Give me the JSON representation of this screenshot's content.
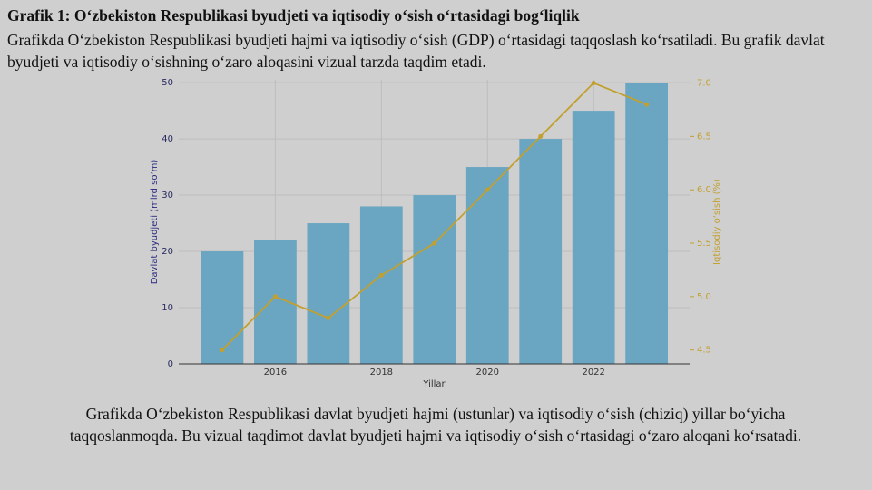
{
  "header": {
    "title": "Grafik 1: O‘zbekiston Respublikasi byudjeti va iqtisodiy o‘sish o‘rtasidagi bog‘liqlik",
    "intro": "Grafikda O‘zbekiston Respublikasi byudjeti hajmi va iqtisodiy o‘sish (GDP) o‘rtasidagi taqqoslash ko‘rsatiladi. Bu grafik davlat byudjeti va iqtisodiy o‘sishning o‘zaro aloqasini vizual tarzda taqdim etadi."
  },
  "chart_data": {
    "type": "combo",
    "x": [
      2015,
      2016,
      2017,
      2018,
      2019,
      2020,
      2021,
      2022,
      2023
    ],
    "xlabel": "Yillar",
    "ylabel": "Davlat byudjeti (mlrd so‘m)",
    "y2label": "Iqtisodiy o‘sish (%)",
    "series": [
      {
        "name": "Davlat byudjeti",
        "type": "bar",
        "color": "#6aa6c2",
        "values": [
          20,
          22,
          25,
          28,
          30,
          35,
          40,
          45,
          50
        ]
      },
      {
        "name": "Iqtisodiy o‘sish",
        "type": "line",
        "axis": "y2",
        "color": "#c2a030",
        "values": [
          4.5,
          5.0,
          4.8,
          5.2,
          5.5,
          6.0,
          6.5,
          7.0,
          6.8
        ]
      }
    ],
    "xlim": [
      2014.18,
      2023.81
    ],
    "xticks": [
      2016,
      2018,
      2020,
      2022
    ],
    "ylim": [
      0,
      50.5
    ],
    "yticks": [
      0,
      10,
      20,
      30,
      40,
      50
    ],
    "y2lim": [
      4.37,
      7.03
    ],
    "y2ticks": [
      4.5,
      {
        "value": 5,
        "label": "5.0"
      },
      5.5,
      {
        "value": 6,
        "label": "6.0"
      },
      6.5,
      {
        "value": 7,
        "label": "7.0"
      }
    ],
    "grid": true
  },
  "caption": "Grafikda O‘zbekiston Respublikasi davlat byudjeti hajmi (ustunlar) va iqtisodiy o‘sish (chiziq) yillar bo‘yicha taqqoslanmoqda. Bu vizual taqdimot davlat byudjeti hajmi va iqtisodiy o‘sish o‘rtasidagi o‘zaro aloqani ko‘rsatadi."
}
